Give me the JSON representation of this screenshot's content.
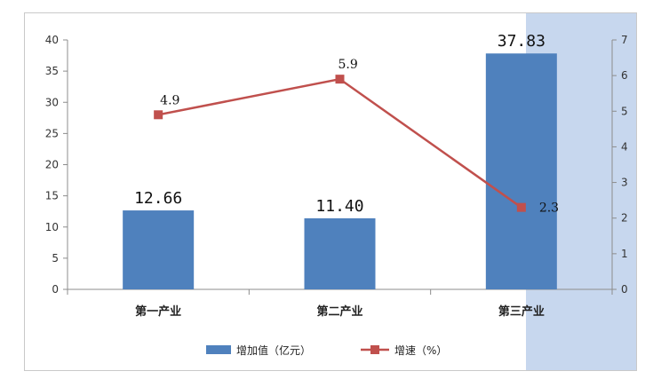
{
  "chart_data": {
    "type": "bar",
    "categories": [
      "第一产业",
      "第二产业",
      "第三产业"
    ],
    "series": [
      {
        "name": "增加值（亿元）",
        "kind": "bar",
        "axis": "left",
        "color": "#4f81bd",
        "values": [
          12.66,
          11.4,
          37.83
        ],
        "labels": [
          "12.66",
          "11.40",
          "37.83"
        ]
      },
      {
        "name": "增速（%）",
        "kind": "line",
        "axis": "right",
        "color": "#c0504d",
        "values": [
          4.9,
          5.9,
          2.3
        ],
        "labels": [
          "4.9",
          "5.9",
          "2.3"
        ]
      }
    ],
    "y_left": {
      "lim": [
        0,
        40
      ],
      "ticks": [
        "0",
        "5",
        "10",
        "15",
        "20",
        "25",
        "30",
        "35",
        "40"
      ]
    },
    "y_right": {
      "lim": [
        0,
        7
      ],
      "ticks": [
        "0",
        "1",
        "2",
        "3",
        "4",
        "5",
        "6",
        "7"
      ]
    },
    "grid": false,
    "legend_position": "bottom",
    "title": "",
    "xlabel": "",
    "ylabel": ""
  },
  "colors": {
    "highlight_region": "#c7d7ee"
  }
}
